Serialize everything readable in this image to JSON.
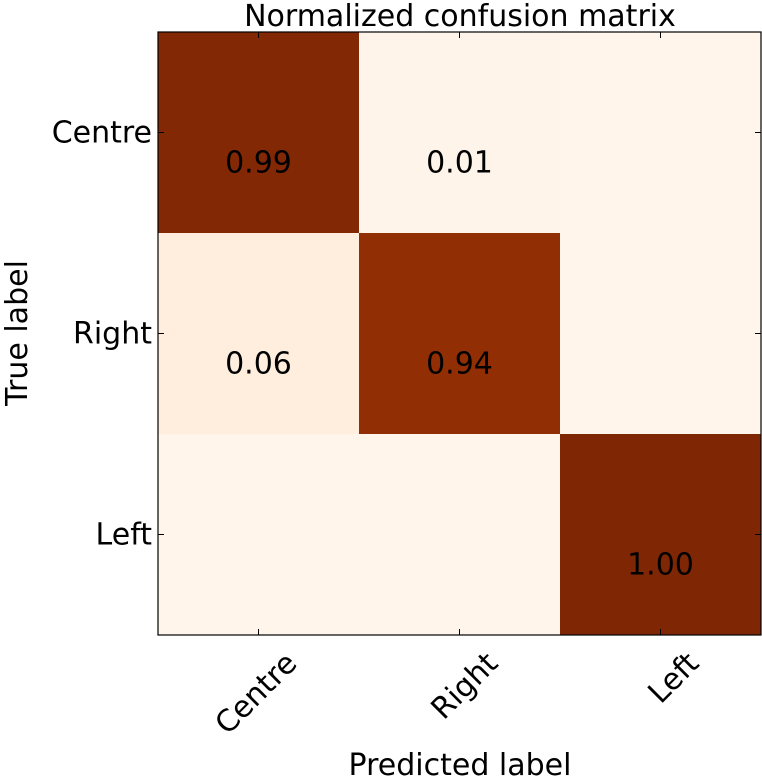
{
  "chart_data": {
    "type": "heatmap",
    "title": "Normalized confusion matrix",
    "categories": [
      "Centre",
      "Right",
      "Left"
    ],
    "xlabel": "Predicted label",
    "ylabel": "True label",
    "values": [
      [
        0.99,
        0.01,
        0
      ],
      [
        0.06,
        0.94,
        0
      ],
      [
        0,
        0,
        1.0
      ]
    ],
    "value_labels": [
      [
        "0.99",
        "0.01",
        null
      ],
      [
        "0.06",
        "0.94",
        null
      ],
      [
        null,
        null,
        "1.00"
      ]
    ],
    "colormap": "Oranges",
    "clim": [
      0,
      1
    ]
  }
}
